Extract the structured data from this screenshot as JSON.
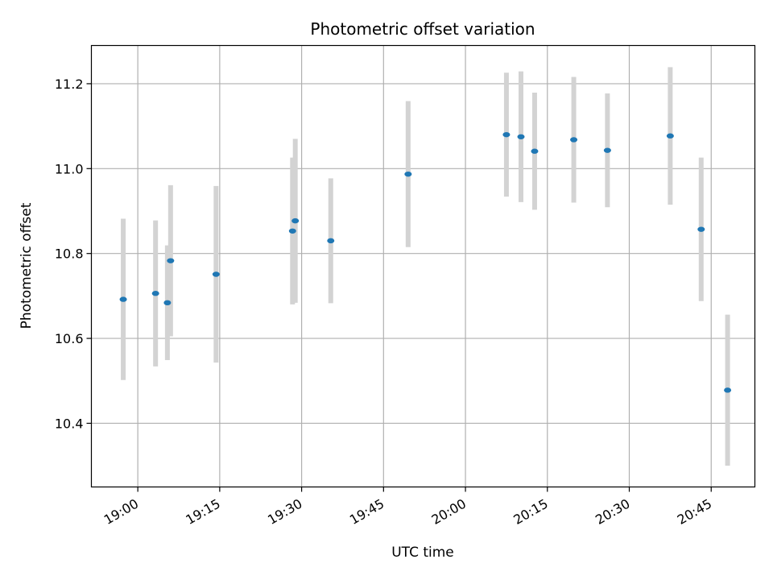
{
  "chart_data": {
    "type": "scatter",
    "title": "Photometric offset variation",
    "xlabel": "UTC time",
    "ylabel": "Photometric offset",
    "x_ticks": [
      "19:00",
      "19:15",
      "19:30",
      "19:45",
      "20:00",
      "20:15",
      "20:30",
      "20:45"
    ],
    "y_ticks": [
      "10.4",
      "10.6",
      "10.8",
      "11.0",
      "11.2"
    ],
    "xlim": [
      "18:51:30",
      "20:53:00"
    ],
    "ylim": [
      10.25,
      11.29
    ],
    "grid": true,
    "legend": "none",
    "colors": {
      "point": "#1f77b4",
      "errorbar": "#d3d3d3",
      "grid": "#b0b0b0"
    },
    "points": [
      {
        "x": "18:57:20",
        "y": 10.692,
        "err": 0.19
      },
      {
        "x": "19:03:15",
        "y": 10.706,
        "err": 0.172
      },
      {
        "x": "19:05:25",
        "y": 10.684,
        "err": 0.135
      },
      {
        "x": "19:06:00",
        "y": 10.783,
        "err": 0.178
      },
      {
        "x": "19:14:20",
        "y": 10.751,
        "err": 0.208
      },
      {
        "x": "19:28:20",
        "y": 10.853,
        "err": 0.173
      },
      {
        "x": "19:28:50",
        "y": 10.877,
        "err": 0.193
      },
      {
        "x": "19:35:20",
        "y": 10.83,
        "err": 0.147
      },
      {
        "x": "19:49:30",
        "y": 10.987,
        "err": 0.172
      },
      {
        "x": "20:07:30",
        "y": 11.08,
        "err": 0.146
      },
      {
        "x": "20:10:10",
        "y": 11.075,
        "err": 0.154
      },
      {
        "x": "20:12:40",
        "y": 11.041,
        "err": 0.138
      },
      {
        "x": "20:19:50",
        "y": 11.068,
        "err": 0.148
      },
      {
        "x": "20:26:00",
        "y": 11.043,
        "err": 0.134
      },
      {
        "x": "20:37:30",
        "y": 11.077,
        "err": 0.162
      },
      {
        "x": "20:43:10",
        "y": 10.857,
        "err": 0.169
      },
      {
        "x": "20:48:00",
        "y": 10.478,
        "err": 0.178
      }
    ]
  }
}
